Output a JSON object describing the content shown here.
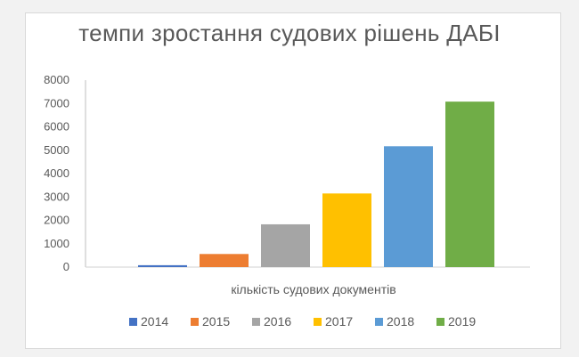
{
  "chart_data": {
    "type": "bar",
    "title": "темпи зростання судових рішень ДАБІ",
    "categories": [
      "кількість судових документів"
    ],
    "xlabel": "",
    "ylabel": "",
    "ylim": [
      0,
      8000
    ],
    "yticks": [
      0,
      1000,
      2000,
      3000,
      4000,
      5000,
      6000,
      7000,
      8000
    ],
    "grid": false,
    "legend": "bottom",
    "series": [
      {
        "name": "2014",
        "values": [
          80
        ],
        "color": "#4472c4"
      },
      {
        "name": "2015",
        "values": [
          560
        ],
        "color": "#ed7d31"
      },
      {
        "name": "2016",
        "values": [
          1830
        ],
        "color": "#a5a5a5"
      },
      {
        "name": "2017",
        "values": [
          3150
        ],
        "color": "#ffc000"
      },
      {
        "name": "2018",
        "values": [
          5170
        ],
        "color": "#5b9bd5"
      },
      {
        "name": "2019",
        "values": [
          7080
        ],
        "color": "#70ad47"
      }
    ]
  }
}
